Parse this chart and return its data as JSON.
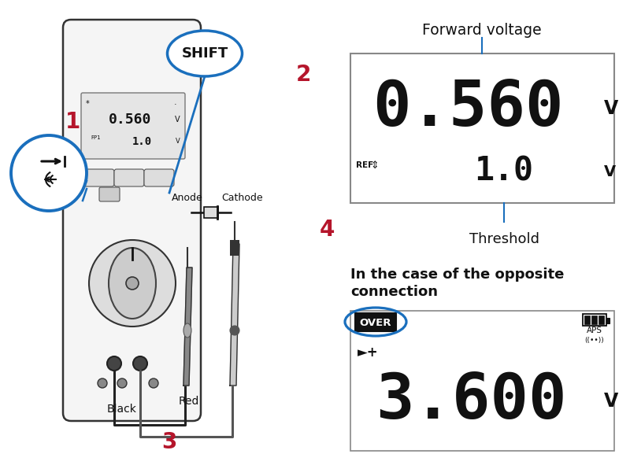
{
  "bg_color": "#ffffff",
  "title_fwd": "Forward voltage",
  "display1_main": "0.560",
  "display1_unit1": "V",
  "display1_ref": "REF",
  "display1_sub": "1.0",
  "display1_unit2": "V",
  "threshold_label": "Threshold",
  "opposite_text1": "In the case of the opposite",
  "opposite_text2": "connection",
  "display2_over": "OVER",
  "display2_main": "3.600",
  "display2_unit": "V",
  "display2_aps": "APS",
  "display2_signal": "((••))",
  "num1": "1",
  "num2": "2",
  "num3": "3",
  "num4": "4",
  "label_shift": "SHIFT",
  "label_anode": "Anode",
  "label_cathode": "Cathode",
  "label_black": "Black",
  "label_red": "Red",
  "dark_color": "#111111",
  "red_color": "#b5152b",
  "blue_color": "#1a6fbd",
  "seg_color": "#111111",
  "box_line_color": "#888888"
}
